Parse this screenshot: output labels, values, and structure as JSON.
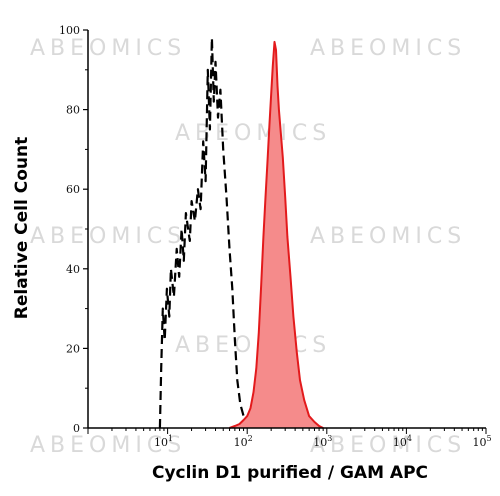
{
  "chart_data": {
    "type": "area",
    "xlabel": "Cyclin D1 purified / GAM APC",
    "ylabel": "Relative Cell Count",
    "x_scale": "log",
    "xlim": [
      1,
      100000
    ],
    "ylim": [
      0,
      100
    ],
    "y_ticks": [
      "0",
      "20",
      "40",
      "60",
      "80",
      "100"
    ],
    "x_ticks": [
      {
        "base": "10",
        "exp": "1"
      },
      {
        "base": "10",
        "exp": "2"
      },
      {
        "base": "10",
        "exp": "3"
      },
      {
        "base": "10",
        "exp": "4"
      },
      {
        "base": "10",
        "exp": "5"
      }
    ],
    "watermark_text": "ABEOMICS",
    "series": [
      {
        "style": "dashed",
        "color": "#000000",
        "points": [
          [
            8,
            0
          ],
          [
            8.3,
            15
          ],
          [
            8.7,
            30
          ],
          [
            9.2,
            22
          ],
          [
            9.8,
            35
          ],
          [
            10.5,
            28
          ],
          [
            11,
            40
          ],
          [
            12,
            33
          ],
          [
            13,
            45
          ],
          [
            14,
            38
          ],
          [
            15,
            50
          ],
          [
            16,
            42
          ],
          [
            17,
            54
          ],
          [
            19,
            47
          ],
          [
            20,
            57
          ],
          [
            22,
            52
          ],
          [
            24,
            60
          ],
          [
            26,
            55
          ],
          [
            28,
            72
          ],
          [
            30,
            62
          ],
          [
            32,
            90
          ],
          [
            34,
            75
          ],
          [
            36,
            98
          ],
          [
            38,
            82
          ],
          [
            40,
            92
          ],
          [
            43,
            78
          ],
          [
            46,
            85
          ],
          [
            50,
            70
          ],
          [
            55,
            58
          ],
          [
            60,
            45
          ],
          [
            65,
            35
          ],
          [
            70,
            22
          ],
          [
            75,
            12
          ],
          [
            82,
            6
          ],
          [
            90,
            3
          ],
          [
            100,
            1
          ],
          [
            110,
            0
          ]
        ]
      },
      {
        "style": "filled",
        "color": "#e31a1c",
        "fill": "#f58b8b",
        "points": [
          [
            60,
            0
          ],
          [
            70,
            0.5
          ],
          [
            80,
            1
          ],
          [
            90,
            2
          ],
          [
            100,
            3
          ],
          [
            110,
            5
          ],
          [
            120,
            9
          ],
          [
            130,
            15
          ],
          [
            140,
            24
          ],
          [
            150,
            36
          ],
          [
            160,
            48
          ],
          [
            170,
            58
          ],
          [
            180,
            67
          ],
          [
            190,
            76
          ],
          [
            200,
            84
          ],
          [
            210,
            91
          ],
          [
            220,
            97
          ],
          [
            230,
            95
          ],
          [
            240,
            86
          ],
          [
            250,
            80
          ],
          [
            260,
            76
          ],
          [
            280,
            68
          ],
          [
            300,
            58
          ],
          [
            320,
            48
          ],
          [
            350,
            38
          ],
          [
            380,
            28
          ],
          [
            420,
            19
          ],
          [
            460,
            12
          ],
          [
            520,
            7
          ],
          [
            600,
            3
          ],
          [
            700,
            1.5
          ],
          [
            800,
            0.5
          ],
          [
            900,
            0
          ]
        ]
      }
    ]
  }
}
